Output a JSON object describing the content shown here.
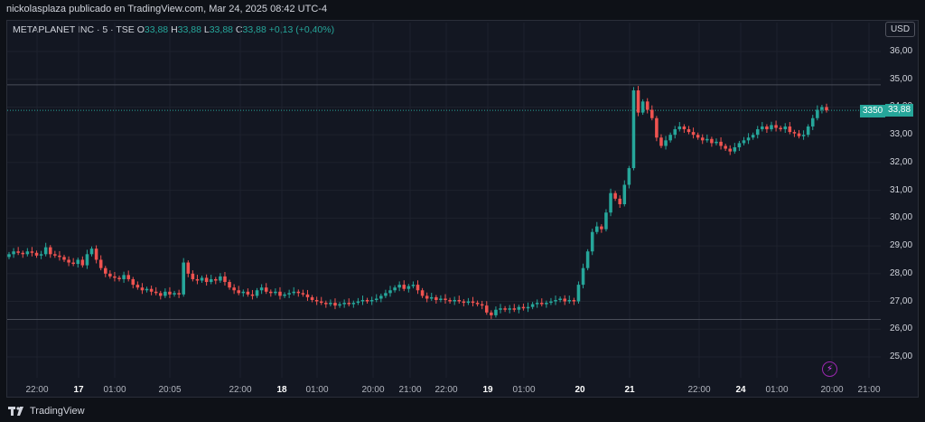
{
  "publisher_line": "nickolasplaza publicado en TradingView.com, Mar 24, 2025 08:42 UTC-4",
  "legend": {
    "symbol": "METAPLANET INC · 5 · TSE",
    "o_label": "O",
    "o_value": "33,88",
    "h_label": "H",
    "h_value": "33,88",
    "l_label": "L",
    "l_value": "33,88",
    "c_label": "C",
    "c_value": "33,88",
    "change": "+0,13 (+0,40%)"
  },
  "currency_button": "USD",
  "price_tags": {
    "volume": "3350",
    "last": "33,88"
  },
  "footer": {
    "brand": "TradingView"
  },
  "colors": {
    "up": "#26a69a",
    "down": "#ef5350",
    "background": "#131722",
    "grid": "#1e222d"
  },
  "chart_data": {
    "type": "candlestick",
    "y_ticks": [
      "25,00",
      "26,00",
      "27,00",
      "28,00",
      "29,00",
      "30,00",
      "31,00",
      "32,00",
      "33,00",
      "34,00",
      "35,00",
      "36,00"
    ],
    "ylim": [
      24.5,
      36.3
    ],
    "x_ticks": [
      {
        "label": "22:00",
        "major": false
      },
      {
        "label": "17",
        "major": true
      },
      {
        "label": "01:00",
        "major": false
      },
      {
        "label": "20:05",
        "major": false
      },
      {
        "label": "22:00",
        "major": false
      },
      {
        "label": "18",
        "major": true
      },
      {
        "label": "01:00",
        "major": false
      },
      {
        "label": "20:00",
        "major": false
      },
      {
        "label": "21:00",
        "major": false
      },
      {
        "label": "22:00",
        "major": false
      },
      {
        "label": "19",
        "major": true
      },
      {
        "label": "01:00",
        "major": false
      },
      {
        "label": "20",
        "major": true
      },
      {
        "label": "21",
        "major": true
      },
      {
        "label": "22:00",
        "major": false
      },
      {
        "label": "24",
        "major": true
      },
      {
        "label": "01:00",
        "major": false
      },
      {
        "label": "20:00",
        "major": false
      },
      {
        "label": "21:00",
        "major": false
      }
    ],
    "horizontal_lines": [
      34.8,
      26.35
    ],
    "last_price": 33.88,
    "close_path": [
      28.7,
      28.8,
      28.75,
      28.7,
      28.8,
      28.75,
      28.65,
      28.7,
      28.95,
      28.7,
      28.65,
      28.6,
      28.5,
      28.4,
      28.35,
      28.5,
      28.3,
      28.7,
      28.9,
      28.5,
      28.2,
      28.0,
      27.9,
      27.85,
      27.8,
      27.95,
      27.8,
      27.6,
      27.5,
      27.4,
      27.45,
      27.35,
      27.3,
      27.2,
      27.35,
      27.25,
      27.3,
      27.25,
      28.4,
      28.0,
      27.8,
      27.75,
      27.85,
      27.7,
      27.8,
      27.75,
      27.9,
      27.7,
      27.5,
      27.4,
      27.3,
      27.35,
      27.25,
      27.2,
      27.4,
      27.5,
      27.35,
      27.3,
      27.35,
      27.2,
      27.25,
      27.3,
      27.35,
      27.3,
      27.25,
      27.15,
      27.05,
      27.0,
      26.95,
      26.9,
      26.95,
      26.85,
      26.9,
      26.95,
      26.9,
      26.95,
      27.0,
      27.05,
      27.0,
      27.05,
      27.1,
      27.2,
      27.3,
      27.4,
      27.5,
      27.6,
      27.45,
      27.55,
      27.6,
      27.4,
      27.2,
      27.1,
      27.15,
      27.05,
      27.1,
      27.05,
      27.0,
      27.05,
      27.0,
      26.95,
      27.0,
      26.95,
      26.9,
      26.85,
      26.6,
      26.5,
      26.7,
      26.75,
      26.7,
      26.75,
      26.7,
      26.8,
      26.75,
      26.8,
      26.9,
      26.95,
      26.9,
      26.95,
      27.0,
      27.05,
      27.1,
      27.0,
      27.05,
      27.0,
      27.6,
      28.2,
      28.8,
      29.5,
      29.7,
      29.6,
      30.2,
      30.9,
      30.7,
      30.5,
      31.2,
      31.8,
      34.6,
      33.8,
      34.2,
      33.9,
      33.6,
      32.9,
      32.6,
      32.8,
      33.0,
      33.2,
      33.3,
      33.2,
      33.1,
      33.0,
      32.9,
      32.8,
      32.85,
      32.7,
      32.75,
      32.6,
      32.5,
      32.4,
      32.55,
      32.7,
      32.8,
      32.9,
      33.0,
      33.2,
      33.3,
      33.2,
      33.35,
      33.25,
      33.2,
      33.3,
      33.1,
      33.05,
      32.95,
      33.0,
      33.3,
      33.6,
      33.9,
      34.0,
      33.88
    ]
  }
}
